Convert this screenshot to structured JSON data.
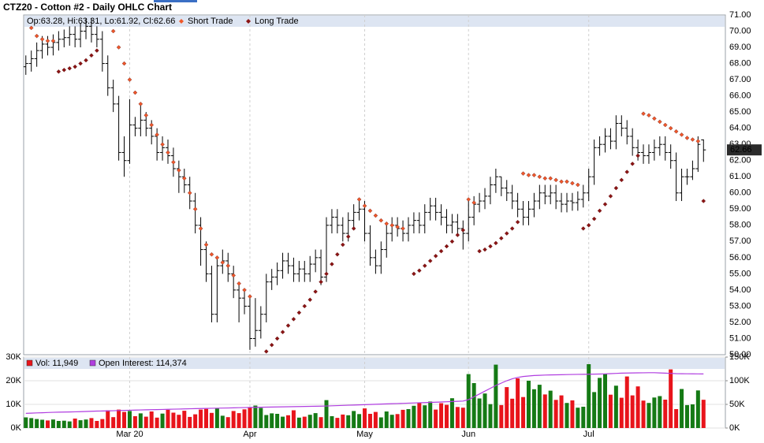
{
  "chart_data": [
    {
      "type": "ohlc",
      "title": "CTZ20 - Cotton #2 - Daily OHLC Chart",
      "info": "Op:63.28, Hi:63.31, Lo:61.92, Cl:62.66",
      "color": "#000000",
      "grid": true,
      "xlim": [
        -0.4,
        128
      ],
      "xticks": [
        {
          "value": 19,
          "label": "Mar 20"
        },
        {
          "value": 41,
          "label": "Apr"
        },
        {
          "value": 62,
          "label": "May"
        },
        {
          "value": 81,
          "label": "Jun"
        },
        {
          "value": 103,
          "label": "Jul"
        }
      ],
      "ylim": [
        50,
        71
      ],
      "yticks": [
        {
          "value": 50,
          "label": "50.00"
        },
        {
          "value": 51,
          "label": "51.00"
        },
        {
          "value": 52,
          "label": "52.00"
        },
        {
          "value": 53,
          "label": "53.00"
        },
        {
          "value": 54,
          "label": "54.00"
        },
        {
          "value": 55,
          "label": "55.00"
        },
        {
          "value": 56,
          "label": "56.00"
        },
        {
          "value": 57,
          "label": "57.00"
        },
        {
          "value": 58,
          "label": "58.00"
        },
        {
          "value": 59,
          "label": "59.00"
        },
        {
          "value": 60,
          "label": "60.00"
        },
        {
          "value": 61,
          "label": "61.00"
        },
        {
          "value": 62,
          "label": "62.00"
        },
        {
          "value": 63,
          "label": "63.00"
        },
        {
          "value": 64,
          "label": "64.00"
        },
        {
          "value": 65,
          "label": "65.00"
        },
        {
          "value": 66,
          "label": "66.00"
        },
        {
          "value": 67,
          "label": "67.00"
        },
        {
          "value": 68,
          "label": "68.00"
        },
        {
          "value": 69,
          "label": "69.00"
        },
        {
          "value": 70,
          "label": "70.00"
        },
        {
          "value": 71,
          "label": "71.00"
        }
      ],
      "open": [
        67.8,
        68.0,
        68.3,
        68.8,
        69.2,
        69.0,
        69.3,
        69.5,
        69.6,
        69.8,
        69.5,
        70.0,
        70.3,
        69.8,
        69.5,
        68.0,
        66.5,
        65.5,
        62.5,
        62.0,
        64.2,
        64.0,
        64.5,
        64.0,
        63.5,
        62.5,
        62.8,
        62.3,
        61.5,
        61.0,
        60.5,
        59.5,
        58.0,
        56.5,
        55.0,
        52.5,
        55.5,
        55.8,
        55.0,
        54.0,
        53.5,
        53.0,
        51.0,
        51.5,
        52.5,
        54.5,
        54.8,
        55.2,
        55.8,
        55.5,
        55.0,
        55.3,
        55.0,
        55.6,
        56.0,
        54.8,
        58.0,
        58.5,
        58.0,
        57.5,
        58.3,
        58.8,
        59.0,
        57.5,
        56.0,
        55.5,
        56.5,
        57.5,
        58.0,
        57.8,
        57.5,
        58.0,
        58.3,
        58.0,
        58.8,
        59.2,
        58.8,
        58.5,
        58.0,
        58.2,
        57.8,
        57.5,
        58.5,
        59.3,
        59.5,
        59.8,
        60.5,
        61.0,
        60.3,
        60.0,
        59.5,
        59.0,
        58.5,
        59.0,
        59.5,
        60.0,
        59.8,
        60.0,
        59.5,
        59.3,
        59.5,
        59.4,
        59.6,
        60.0,
        61.0,
        62.8,
        63.0,
        63.5,
        63.2,
        64.3,
        64.0,
        63.5,
        62.8,
        62.5,
        62.3,
        62.5,
        62.8,
        63.0,
        62.5,
        62.0,
        60.0,
        61.0,
        61.0,
        61.5,
        63.28
      ],
      "high": [
        68.5,
        68.8,
        69.3,
        69.7,
        69.7,
        69.8,
        70.0,
        70.1,
        70.3,
        70.3,
        70.5,
        70.8,
        70.8,
        70.3,
        70.0,
        68.5,
        67.0,
        66.0,
        63.5,
        65.8,
        64.7,
        65.5,
        65.0,
        64.5,
        64.0,
        63.5,
        63.3,
        62.8,
        62.0,
        61.5,
        61.0,
        60.0,
        58.5,
        57.0,
        55.5,
        56.0,
        56.5,
        56.3,
        55.5,
        54.5,
        54.0,
        53.5,
        53.5,
        53.0,
        55.0,
        55.3,
        55.7,
        56.3,
        56.3,
        56.0,
        55.8,
        55.8,
        56.1,
        56.5,
        56.5,
        58.5,
        59.0,
        59.0,
        58.5,
        58.8,
        59.3,
        59.5,
        59.5,
        58.0,
        56.5,
        57.0,
        58.0,
        58.5,
        58.5,
        58.3,
        58.5,
        58.8,
        58.8,
        59.3,
        59.7,
        59.7,
        59.3,
        59.0,
        58.7,
        58.7,
        58.3,
        59.5,
        59.8,
        60.0,
        60.3,
        61.0,
        61.5,
        61.0,
        60.8,
        60.5,
        60.0,
        59.5,
        59.5,
        60.0,
        60.5,
        60.5,
        60.5,
        60.5,
        60.0,
        60.0,
        60.0,
        60.1,
        60.5,
        61.5,
        63.3,
        63.5,
        64.0,
        64.0,
        64.8,
        64.8,
        64.5,
        64.0,
        63.3,
        63.0,
        63.0,
        63.3,
        63.5,
        63.5,
        63.0,
        62.5,
        61.5,
        61.5,
        62.0,
        63.5,
        63.31
      ],
      "low": [
        67.3,
        67.5,
        67.8,
        68.3,
        68.5,
        68.5,
        68.8,
        69.0,
        69.1,
        69.0,
        69.0,
        69.5,
        69.3,
        69.0,
        67.5,
        66.0,
        65.0,
        62.0,
        61.0,
        61.8,
        63.5,
        63.5,
        63.5,
        63.0,
        62.0,
        62.0,
        61.8,
        61.0,
        60.0,
        60.0,
        59.0,
        57.5,
        55.5,
        54.5,
        52.0,
        52.0,
        55.0,
        54.5,
        53.5,
        52.0,
        52.5,
        50.3,
        50.5,
        51.0,
        52.0,
        54.0,
        54.3,
        54.7,
        55.0,
        54.5,
        54.5,
        54.5,
        54.5,
        55.1,
        54.3,
        54.5,
        57.5,
        57.5,
        57.0,
        57.0,
        57.8,
        58.3,
        57.0,
        55.5,
        55.0,
        55.0,
        56.0,
        57.0,
        57.3,
        57.0,
        57.0,
        57.5,
        57.5,
        57.5,
        58.3,
        58.3,
        58.0,
        57.5,
        57.5,
        57.3,
        56.5,
        57.0,
        58.0,
        58.8,
        59.0,
        59.3,
        60.0,
        59.8,
        59.5,
        59.0,
        58.5,
        58.0,
        58.0,
        58.5,
        59.0,
        59.3,
        59.3,
        59.0,
        58.8,
        58.8,
        58.9,
        58.9,
        59.1,
        59.5,
        60.5,
        62.3,
        62.5,
        62.7,
        62.7,
        63.5,
        63.0,
        62.3,
        62.0,
        61.8,
        61.8,
        62.0,
        62.3,
        62.0,
        61.5,
        59.5,
        59.5,
        60.5,
        60.8,
        61.3,
        61.92
      ],
      "close": [
        68.0,
        68.3,
        68.8,
        69.2,
        69.0,
        69.3,
        69.5,
        69.6,
        69.8,
        69.5,
        70.0,
        70.3,
        69.8,
        69.5,
        68.0,
        66.5,
        65.5,
        62.5,
        62.0,
        64.2,
        64.0,
        64.5,
        64.0,
        63.5,
        62.5,
        62.8,
        62.3,
        61.5,
        61.0,
        60.5,
        59.5,
        58.0,
        56.5,
        55.0,
        52.5,
        55.5,
        55.8,
        55.0,
        54.0,
        53.5,
        53.0,
        51.0,
        51.5,
        52.5,
        54.5,
        54.8,
        55.2,
        55.8,
        55.5,
        55.0,
        55.3,
        55.0,
        55.6,
        56.0,
        54.8,
        58.0,
        58.5,
        58.0,
        57.5,
        58.3,
        58.8,
        59.0,
        57.5,
        56.0,
        55.5,
        56.5,
        57.5,
        58.0,
        57.8,
        57.5,
        58.0,
        58.3,
        58.0,
        58.8,
        59.2,
        58.8,
        58.5,
        58.0,
        58.2,
        57.8,
        57.5,
        58.5,
        59.3,
        59.5,
        59.8,
        60.5,
        61.0,
        60.3,
        60.0,
        59.5,
        59.0,
        58.5,
        59.0,
        59.5,
        60.0,
        59.8,
        60.0,
        59.5,
        59.3,
        59.5,
        59.4,
        59.6,
        60.0,
        61.0,
        62.8,
        63.0,
        63.5,
        63.2,
        64.3,
        64.0,
        63.5,
        62.8,
        62.5,
        62.3,
        62.5,
        62.8,
        63.0,
        62.5,
        62.0,
        60.0,
        61.0,
        61.0,
        61.5,
        63.0,
        62.66
      ],
      "series": [
        {
          "name": "Short Trade",
          "color": "#f0582a",
          "values": [
            null,
            70.2,
            69.7,
            69.5,
            69.4,
            69.4,
            null,
            null,
            null,
            null,
            null,
            null,
            null,
            null,
            null,
            null,
            70.0,
            69.0,
            68.0,
            67.0,
            66.2,
            65.5,
            64.8,
            64.2,
            63.6,
            63.0,
            62.5,
            61.9,
            61.4,
            60.9,
            60.0,
            59.0,
            57.8,
            56.8,
            56.2,
            56.0,
            55.7,
            55.5,
            54.9,
            54.4,
            54.0,
            53.6,
            null,
            null,
            null,
            null,
            null,
            null,
            null,
            null,
            null,
            null,
            null,
            null,
            null,
            null,
            null,
            null,
            null,
            null,
            null,
            59.6,
            59.2,
            58.9,
            58.6,
            58.3,
            58.1,
            58.0,
            57.9,
            57.8,
            null,
            null,
            null,
            null,
            null,
            null,
            null,
            null,
            null,
            null,
            null,
            59.6,
            59.4,
            null,
            null,
            null,
            null,
            null,
            null,
            null,
            null,
            61.2,
            61.1,
            61.1,
            61.0,
            60.9,
            60.9,
            60.8,
            60.7,
            60.7,
            60.6,
            60.5,
            null,
            null,
            null,
            null,
            null,
            null,
            null,
            null,
            null,
            null,
            null,
            64.9,
            64.8,
            64.6,
            64.4,
            64.2,
            64.0,
            63.8,
            63.6,
            63.4,
            63.3,
            63.2,
            null
          ]
        },
        {
          "name": "Long Trade",
          "color": "#8b1414",
          "values": [
            null,
            null,
            null,
            null,
            null,
            null,
            67.5,
            67.6,
            67.7,
            67.8,
            68.0,
            68.2,
            68.5,
            68.8,
            null,
            null,
            null,
            null,
            null,
            null,
            null,
            null,
            null,
            null,
            null,
            null,
            null,
            null,
            null,
            null,
            null,
            null,
            null,
            null,
            null,
            null,
            null,
            null,
            null,
            null,
            null,
            null,
            null,
            null,
            50.2,
            50.6,
            51.0,
            51.4,
            51.8,
            52.2,
            52.6,
            53.0,
            53.4,
            53.9,
            54.5,
            55.0,
            55.6,
            56.2,
            56.8,
            57.3,
            57.8,
            null,
            null,
            null,
            null,
            null,
            null,
            null,
            null,
            null,
            null,
            55.0,
            55.2,
            55.5,
            55.8,
            56.1,
            56.4,
            56.7,
            57.0,
            57.4,
            57.7,
            null,
            null,
            56.4,
            56.5,
            56.7,
            56.9,
            57.2,
            57.5,
            57.8,
            58.2,
            null,
            null,
            null,
            null,
            null,
            null,
            null,
            null,
            null,
            null,
            null,
            57.8,
            58.0,
            58.4,
            58.9,
            59.3,
            59.8,
            60.3,
            60.8,
            61.3,
            61.8,
            62.3,
            null,
            null,
            null,
            null,
            null,
            null,
            null,
            null,
            null,
            null,
            null,
            59.5
          ]
        }
      ]
    },
    {
      "type": "bar",
      "ylim": [
        0,
        30000
      ],
      "yticks": [
        {
          "value": 0,
          "label": "0K"
        },
        {
          "value": 10000,
          "label": "10K"
        },
        {
          "value": 20000,
          "label": "20K"
        },
        {
          "value": 30000,
          "label": "30K"
        }
      ],
      "y2lim": [
        0,
        150000
      ],
      "y2ticks": [
        {
          "value": 0,
          "label": "0K"
        },
        {
          "value": 50000,
          "label": "50K"
        },
        {
          "value": 100000,
          "label": "100K"
        },
        {
          "value": 150000,
          "label": "150K"
        }
      ],
      "series": [
        {
          "name": "Vol: 11,949",
          "color": "#e8141b",
          "up_color": "#157a15",
          "values": [
            4500,
            4200,
            3800,
            3500,
            3200,
            3600,
            3000,
            3100,
            2800,
            4000,
            3300,
            3600,
            4200,
            3000,
            3800,
            7500,
            4600,
            7800,
            6800,
            7200,
            5000,
            6200,
            4800,
            7000,
            4400,
            6100,
            7700,
            6500,
            5600,
            7300,
            4700,
            5800,
            7800,
            8100,
            6400,
            8300,
            5200,
            4600,
            7200,
            6300,
            7900,
            8800,
            9500,
            8500,
            5500,
            6200,
            6000,
            4800,
            5400,
            7500,
            4400,
            4800,
            5600,
            6300,
            4600,
            11800,
            5000,
            4300,
            5700,
            5400,
            7200,
            5900,
            8300,
            6000,
            6800,
            4500,
            7000,
            5600,
            5900,
            7700,
            8000,
            9400,
            10800,
            9600,
            11200,
            7800,
            10500,
            9800,
            12600,
            8900,
            8600,
            22800,
            19000,
            12500,
            14600,
            10100,
            26800,
            9700,
            17300,
            12400,
            21000,
            13100,
            20000,
            16400,
            18300,
            14200,
            15800,
            11900,
            13800,
            10600,
            11700,
            8600,
            9000,
            27000,
            15200,
            21200,
            23000,
            14100,
            17900,
            12800,
            21800,
            13800,
            17600,
            11600,
            10600,
            12900,
            13500,
            12000,
            24800,
            8000,
            16500,
            9700,
            10000,
            15900,
            11949
          ]
        },
        {
          "name": "Open Interest: 114,374",
          "color": "#b03ee0",
          "axis": "y2",
          "values": [
            31000,
            31500,
            32000,
            32300,
            32800,
            33200,
            33500,
            33800,
            34000,
            34300,
            34600,
            35000,
            35400,
            35800,
            36000,
            36300,
            36600,
            37000,
            37300,
            37600,
            37900,
            38200,
            38500,
            38800,
            39000,
            39300,
            39600,
            39900,
            40100,
            40400,
            40700,
            41000,
            41200,
            41500,
            41800,
            42000,
            42200,
            42400,
            42700,
            43000,
            43200,
            43500,
            43800,
            44000,
            44200,
            44400,
            44600,
            44800,
            45000,
            45200,
            45400,
            45600,
            45800,
            46000,
            46300,
            46600,
            47000,
            47400,
            47800,
            48200,
            48600,
            49000,
            49400,
            49800,
            50200,
            50600,
            51000,
            51400,
            51800,
            52200,
            52600,
            53000,
            53400,
            53800,
            54200,
            54600,
            55000,
            55500,
            56000,
            56500,
            57000,
            60000,
            66000,
            72000,
            78000,
            84000,
            90000,
            95000,
            100000,
            104000,
            107000,
            109000,
            110000,
            111000,
            111500,
            112000,
            112300,
            112500,
            112700,
            113000,
            113200,
            113400,
            113600,
            113800,
            114000,
            114200,
            114500,
            115000,
            115500,
            116000,
            116300,
            116500,
            116700,
            116800,
            117000,
            117000,
            116500,
            116000,
            115500,
            115000,
            114800,
            114700,
            114600,
            114500,
            114374
          ]
        }
      ]
    }
  ]
}
